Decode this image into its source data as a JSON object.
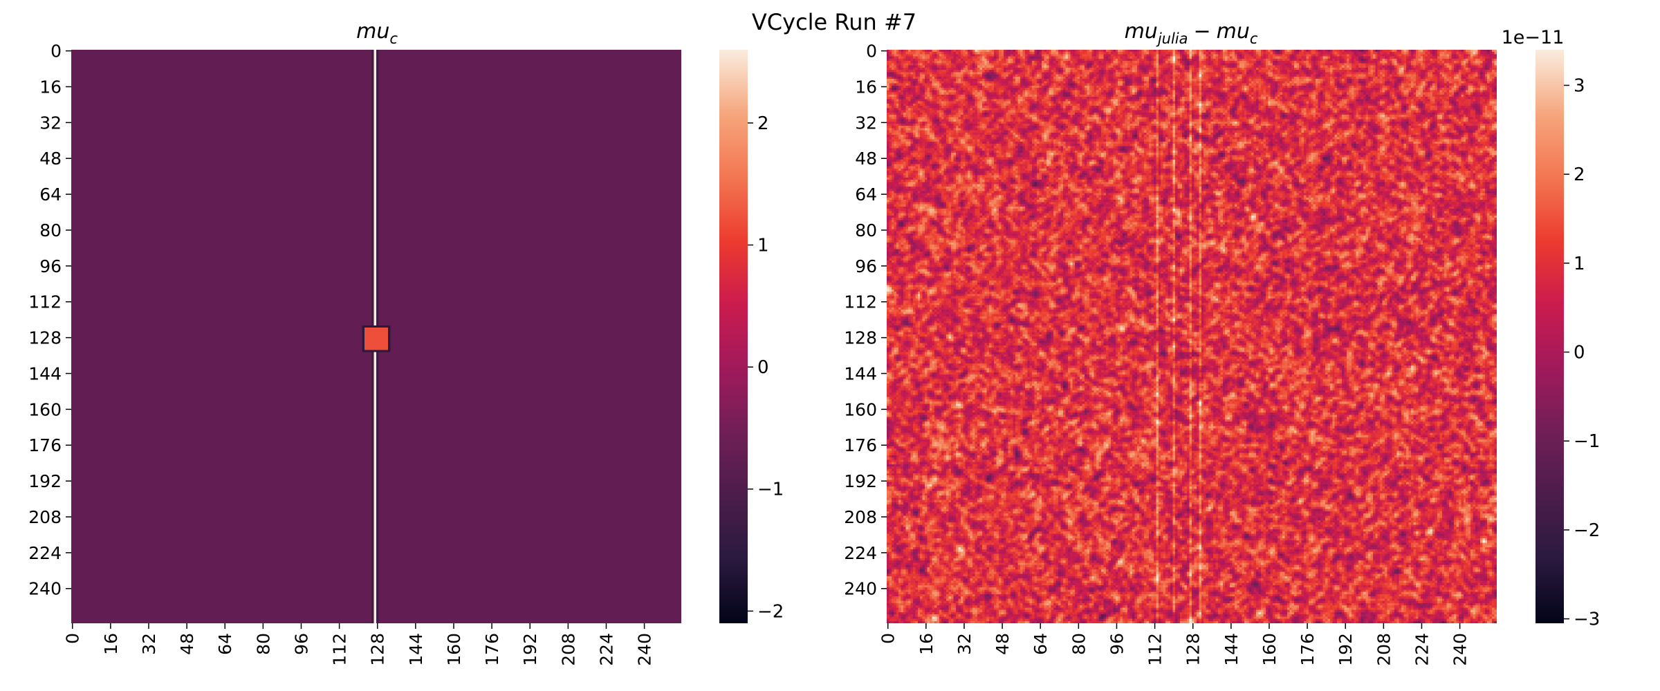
{
  "figure": {
    "suptitle": "VCycle Run #7"
  },
  "colormap": {
    "name": "rocket",
    "stops": [
      "#03051a",
      "#2b1a3f",
      "#4c1d4b",
      "#711f57",
      "#a11a5b",
      "#cb1b4f",
      "#ec3c30",
      "#f37651",
      "#f6a67d",
      "#faebdd"
    ]
  },
  "chart_data": [
    {
      "type": "heatmap",
      "name": "mu_c",
      "title": "mu_c",
      "title_main": "mu",
      "title_sub": "c",
      "grid_size": 256,
      "x_ticks": [
        "0",
        "16",
        "32",
        "48",
        "64",
        "80",
        "96",
        "112",
        "128",
        "144",
        "160",
        "176",
        "192",
        "208",
        "224",
        "240"
      ],
      "y_ticks": [
        "0",
        "16",
        "32",
        "48",
        "64",
        "80",
        "96",
        "112",
        "128",
        "144",
        "160",
        "176",
        "192",
        "208",
        "224",
        "240"
      ],
      "background_value": -0.75,
      "features": [
        {
          "kind": "vertical_line",
          "col": 127,
          "value": 2.6
        },
        {
          "kind": "square",
          "row_start": 123,
          "row_end": 134,
          "col_start": 122,
          "col_end": 133,
          "value": 1.2
        }
      ],
      "colorbar": {
        "vmin": -2.1,
        "vmax": 2.6,
        "ticks": [
          -2,
          -1,
          0,
          1,
          2
        ],
        "tick_labels": [
          "−2",
          "−1",
          "0",
          "1",
          "2"
        ],
        "offset_text": ""
      }
    },
    {
      "type": "heatmap",
      "name": "mu_julia - mu_c",
      "title": "mu_julia − mu_c",
      "title_a_main": "mu",
      "title_a_sub": "julia",
      "title_minus": "−",
      "title_b_main": "mu",
      "title_b_sub": "c",
      "grid_size": 256,
      "x_ticks": [
        "0",
        "16",
        "32",
        "48",
        "64",
        "80",
        "96",
        "112",
        "128",
        "144",
        "160",
        "176",
        "192",
        "208",
        "224",
        "240"
      ],
      "y_ticks": [
        "0",
        "16",
        "32",
        "48",
        "64",
        "80",
        "96",
        "112",
        "128",
        "144",
        "160",
        "176",
        "192",
        "208",
        "224",
        "240"
      ],
      "distribution": "random noise, mean ≈ 1e-11, spread ≈ 1e-11",
      "noise_mean": 1.0,
      "noise_std": 1.1,
      "bright_columns": [
        113,
        120,
        127,
        131
      ],
      "colorbar": {
        "vmin": -3.05,
        "vmax": 3.4,
        "ticks": [
          -3,
          -2,
          -1,
          0,
          1,
          2,
          3
        ],
        "tick_labels": [
          "−3",
          "−2",
          "−1",
          "0",
          "1",
          "2",
          "3"
        ],
        "offset_text": "1e−11"
      }
    }
  ]
}
